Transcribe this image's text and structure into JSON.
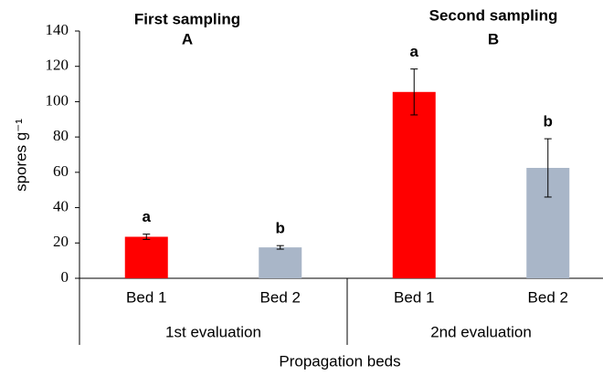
{
  "chart_data": {
    "type": "bar",
    "y_label": "spores g⁻¹",
    "x_label": "Propagation beds",
    "categories": [
      "Bed 1",
      "Bed 2",
      "Bed 1",
      "Bed 2"
    ],
    "groups": [
      {
        "title": "First sampling",
        "letter": "A",
        "label": "1st evaluation"
      },
      {
        "title": "Second sampling",
        "letter": "B",
        "label": "2nd evaluation"
      }
    ],
    "values": [
      23.5,
      17.5,
      105.5,
      62.5
    ],
    "errors": [
      1.5,
      1,
      13,
      16.5
    ],
    "letters": [
      "a",
      "b",
      "a",
      "b"
    ],
    "colors": [
      "#ff0000",
      "#a9b6c8",
      "#ff0000",
      "#a9b6c8"
    ],
    "ylim": [
      0,
      140
    ],
    "yticks": [
      0,
      20,
      40,
      60,
      80,
      100,
      120,
      140
    ]
  }
}
